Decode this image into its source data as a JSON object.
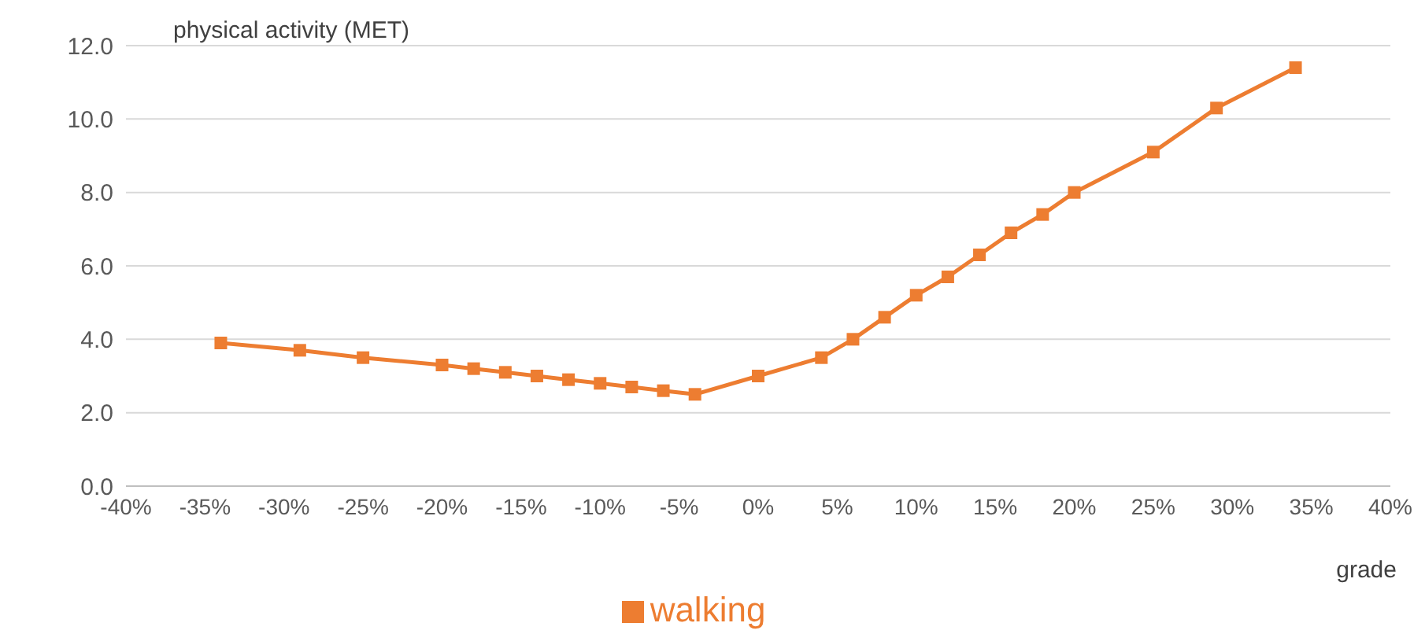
{
  "chart_data": {
    "type": "line",
    "ylabel": "physical activity (MET)",
    "xlabel": "grade",
    "x": [
      -34,
      -29,
      -25,
      -20,
      -18,
      -16,
      -14,
      -12,
      -10,
      -8,
      -6,
      -4,
      0,
      4,
      6,
      8,
      10,
      12,
      14,
      16,
      18,
      20,
      25,
      29,
      34
    ],
    "series": [
      {
        "name": "walking",
        "color": "#ed7d31",
        "values": [
          3.9,
          3.7,
          3.5,
          3.3,
          3.2,
          3.1,
          3.0,
          2.9,
          2.8,
          2.7,
          2.6,
          2.5,
          3.0,
          3.5,
          4.0,
          4.6,
          5.2,
          5.7,
          6.3,
          6.9,
          7.4,
          8.0,
          9.1,
          10.3,
          11.4
        ]
      }
    ],
    "xlim": [
      -40,
      40
    ],
    "xticks": [
      {
        "value": -40,
        "label": "-40%"
      },
      {
        "value": -35,
        "label": "-35%"
      },
      {
        "value": -30,
        "label": "-30%"
      },
      {
        "value": -25,
        "label": "-25%"
      },
      {
        "value": -20,
        "label": "-20%"
      },
      {
        "value": -15,
        "label": "-15%"
      },
      {
        "value": -10,
        "label": "-10%"
      },
      {
        "value": -5,
        "label": "-5%"
      },
      {
        "value": 0,
        "label": "0%"
      },
      {
        "value": 5,
        "label": "5%"
      },
      {
        "value": 10,
        "label": "10%"
      },
      {
        "value": 15,
        "label": "15%"
      },
      {
        "value": 20,
        "label": "20%"
      },
      {
        "value": 25,
        "label": "25%"
      },
      {
        "value": 30,
        "label": "30%"
      },
      {
        "value": 35,
        "label": "35%"
      },
      {
        "value": 40,
        "label": "40%"
      }
    ],
    "ylim": [
      0,
      12
    ],
    "yticks": [
      {
        "value": 0,
        "label": "0.0"
      },
      {
        "value": 2,
        "label": "2.0"
      },
      {
        "value": 4,
        "label": "4.0"
      },
      {
        "value": 6,
        "label": "6.0"
      },
      {
        "value": 8,
        "label": "8.0"
      },
      {
        "value": 10,
        "label": "10.0"
      },
      {
        "value": 12,
        "label": "12.0"
      }
    ],
    "grid": "y",
    "legend": "bottom",
    "marker": "square",
    "line_style": "solid"
  }
}
